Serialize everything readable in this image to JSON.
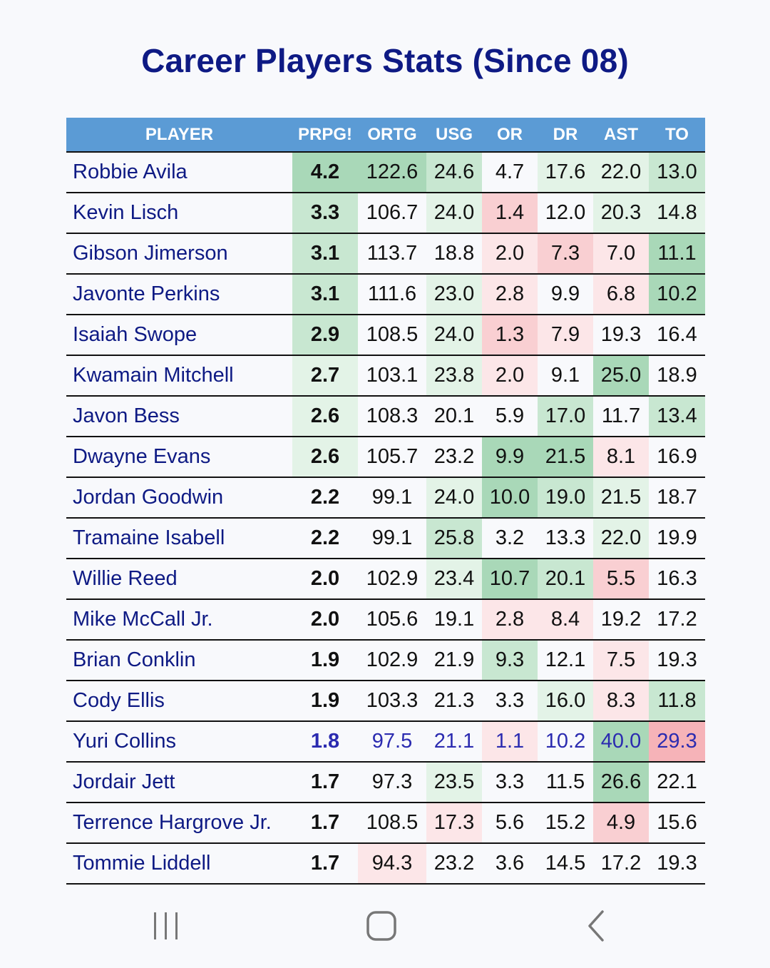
{
  "title": "Career Players Stats (Since 08)",
  "columns": [
    "PLAYER",
    "PRPG!",
    "ORTG",
    "USG",
    "OR",
    "DR",
    "AST",
    "TO"
  ],
  "rows": [
    {
      "player": "Robbie Avila",
      "prpg": "4.2",
      "ortg": "122.6",
      "usg": "24.6",
      "or": "4.7",
      "dr": "17.6",
      "ast": "22.0",
      "to": "13.0"
    },
    {
      "player": "Kevin Lisch",
      "prpg": "3.3",
      "ortg": "106.7",
      "usg": "24.0",
      "or": "1.4",
      "dr": "12.0",
      "ast": "20.3",
      "to": "14.8"
    },
    {
      "player": "Gibson Jimerson",
      "prpg": "3.1",
      "ortg": "113.7",
      "usg": "18.8",
      "or": "2.0",
      "dr": "7.3",
      "ast": "7.0",
      "to": "11.1"
    },
    {
      "player": "Javonte Perkins",
      "prpg": "3.1",
      "ortg": "111.6",
      "usg": "23.0",
      "or": "2.8",
      "dr": "9.9",
      "ast": "6.8",
      "to": "10.2"
    },
    {
      "player": "Isaiah Swope",
      "prpg": "2.9",
      "ortg": "108.5",
      "usg": "24.0",
      "or": "1.3",
      "dr": "7.9",
      "ast": "19.3",
      "to": "16.4"
    },
    {
      "player": "Kwamain Mitchell",
      "prpg": "2.7",
      "ortg": "103.1",
      "usg": "23.8",
      "or": "2.0",
      "dr": "9.1",
      "ast": "25.0",
      "to": "18.9"
    },
    {
      "player": "Javon Bess",
      "prpg": "2.6",
      "ortg": "108.3",
      "usg": "20.1",
      "or": "5.9",
      "dr": "17.0",
      "ast": "11.7",
      "to": "13.4"
    },
    {
      "player": "Dwayne Evans",
      "prpg": "2.6",
      "ortg": "105.7",
      "usg": "23.2",
      "or": "9.9",
      "dr": "21.5",
      "ast": "8.1",
      "to": "16.9"
    },
    {
      "player": "Jordan Goodwin",
      "prpg": "2.2",
      "ortg": "99.1",
      "usg": "24.0",
      "or": "10.0",
      "dr": "19.0",
      "ast": "21.5",
      "to": "18.7"
    },
    {
      "player": "Tramaine Isabell",
      "prpg": "2.2",
      "ortg": "99.1",
      "usg": "25.8",
      "or": "3.2",
      "dr": "13.3",
      "ast": "22.0",
      "to": "19.9"
    },
    {
      "player": "Willie Reed",
      "prpg": "2.0",
      "ortg": "102.9",
      "usg": "23.4",
      "or": "10.7",
      "dr": "20.1",
      "ast": "5.5",
      "to": "16.3"
    },
    {
      "player": "Mike McCall Jr.",
      "prpg": "2.0",
      "ortg": "105.6",
      "usg": "19.1",
      "or": "2.8",
      "dr": "8.4",
      "ast": "19.2",
      "to": "17.2"
    },
    {
      "player": "Brian Conklin",
      "prpg": "1.9",
      "ortg": "102.9",
      "usg": "21.9",
      "or": "9.3",
      "dr": "12.1",
      "ast": "7.5",
      "to": "19.3"
    },
    {
      "player": "Cody Ellis",
      "prpg": "1.9",
      "ortg": "103.3",
      "usg": "21.3",
      "or": "3.3",
      "dr": "16.0",
      "ast": "8.3",
      "to": "11.8"
    },
    {
      "player": "Yuri Collins",
      "prpg": "1.8",
      "ortg": "97.5",
      "usg": "21.1",
      "or": "1.1",
      "dr": "10.2",
      "ast": "40.0",
      "to": "29.3"
    },
    {
      "player": "Jordair Jett",
      "prpg": "1.7",
      "ortg": "97.3",
      "usg": "23.5",
      "or": "3.3",
      "dr": "11.5",
      "ast": "26.6",
      "to": "22.1"
    },
    {
      "player": "Terrence Hargrove Jr.",
      "prpg": "1.7",
      "ortg": "108.5",
      "usg": "17.3",
      "or": "5.6",
      "dr": "15.2",
      "ast": "4.9",
      "to": "15.6"
    },
    {
      "player": "Tommie Liddell",
      "prpg": "1.7",
      "ortg": "94.3",
      "usg": "23.2",
      "or": "3.6",
      "dr": "14.5",
      "ast": "17.2",
      "to": "19.3"
    }
  ],
  "highlighted_row": "Yuri Collins",
  "colors": {
    "header_bg": "#5b9bd5",
    "title": "#0e1a84",
    "good_strong": "#a9d8b8",
    "good_mid": "#c8e7d1",
    "good_light": "#e3f3e7",
    "bad_strong": "#f6b3b8",
    "bad_mid": "#f9cfd2",
    "bad_light": "#fce6e8"
  },
  "cell_shading": [
    [
      "g3",
      "g3",
      "g2",
      "n",
      "g1",
      "g1",
      "g2"
    ],
    [
      "g2",
      "n",
      "g1",
      "r2",
      "n",
      "g1",
      "g1"
    ],
    [
      "g2",
      "n",
      "n",
      "r1",
      "r2",
      "r1",
      "g3"
    ],
    [
      "g2",
      "n",
      "g1",
      "r1",
      "n",
      "r1",
      "g3"
    ],
    [
      "g2",
      "n",
      "g1",
      "r2",
      "r1",
      "n",
      "n"
    ],
    [
      "g1",
      "n",
      "g1",
      "r1",
      "n",
      "g3",
      "n"
    ],
    [
      "g1",
      "n",
      "n",
      "n",
      "g2",
      "n",
      "g2"
    ],
    [
      "g1",
      "n",
      "n",
      "g3",
      "g3",
      "r1",
      "n"
    ],
    [
      "n",
      "n",
      "g1",
      "g3",
      "g2",
      "g1",
      "n"
    ],
    [
      "n",
      "n",
      "g2",
      "n",
      "n",
      "g1",
      "n"
    ],
    [
      "n",
      "n",
      "g1",
      "g3",
      "g2",
      "r2",
      "n"
    ],
    [
      "n",
      "n",
      "n",
      "r1",
      "r1",
      "n",
      "n"
    ],
    [
      "n",
      "n",
      "n",
      "g2",
      "n",
      "r1",
      "n"
    ],
    [
      "n",
      "n",
      "n",
      "n",
      "g1",
      "r1",
      "g2"
    ],
    [
      "n",
      "n",
      "n",
      "r1",
      "n",
      "g3",
      "r3"
    ],
    [
      "n",
      "n",
      "g1",
      "n",
      "n",
      "g3",
      "n"
    ],
    [
      "n",
      "n",
      "r1",
      "n",
      "n",
      "r2",
      "n"
    ],
    [
      "n",
      "r1",
      "n",
      "n",
      "n",
      "n",
      "n"
    ]
  ],
  "nav": {
    "recent_icon": "recent-apps-icon",
    "home_icon": "home-icon",
    "back_icon": "back-icon"
  }
}
